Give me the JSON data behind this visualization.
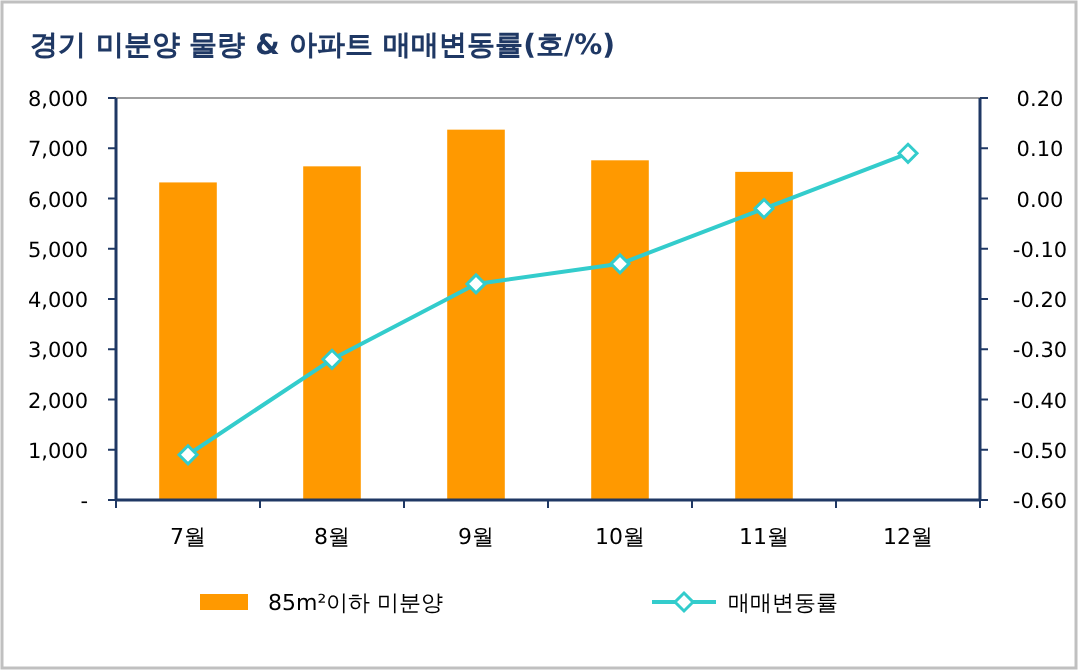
{
  "chart_data": {
    "type": "bar",
    "title": "경기 미분양 물량 & 아파트 매매변동률(호/%)",
    "categories": [
      "7월",
      "8월",
      "9월",
      "10월",
      "11월",
      "12월"
    ],
    "series": [
      {
        "name": "85m²이하 미분양",
        "color": "#ff9900",
        "values": [
          6320,
          6640,
          7370,
          6760,
          6530,
          null
        ]
      },
      {
        "name": "매매변동률",
        "type": "line",
        "axis": "y2",
        "color": "#33cccc",
        "marker": "diamond",
        "values": [
          -0.51,
          -0.32,
          -0.17,
          -0.13,
          -0.02,
          0.09
        ]
      }
    ],
    "ylim": [
      0,
      8000
    ],
    "yticks": [
      {
        "value": 0,
        "label": "-"
      },
      {
        "value": 1000,
        "label": "1,000"
      },
      {
        "value": 2000,
        "label": "2,000"
      },
      {
        "value": 3000,
        "label": "3,000"
      },
      {
        "value": 4000,
        "label": "4,000"
      },
      {
        "value": 5000,
        "label": "5,000"
      },
      {
        "value": 6000,
        "label": "6,000"
      },
      {
        "value": 7000,
        "label": "7,000"
      },
      {
        "value": 8000,
        "label": "8,000"
      }
    ],
    "y2lim": [
      -0.6,
      0.2
    ],
    "y2ticks": [
      {
        "value": -0.6,
        "label": "-0.60"
      },
      {
        "value": -0.5,
        "label": "-0.50"
      },
      {
        "value": -0.4,
        "label": "-0.40"
      },
      {
        "value": -0.3,
        "label": "-0.30"
      },
      {
        "value": -0.2,
        "label": "-0.20"
      },
      {
        "value": -0.1,
        "label": "-0.10"
      },
      {
        "value": 0,
        "label": "0.00"
      },
      {
        "value": 0.1,
        "label": "0.10"
      },
      {
        "value": 0.2,
        "label": "0.20"
      }
    ],
    "legend": "bottom",
    "grid": false
  }
}
